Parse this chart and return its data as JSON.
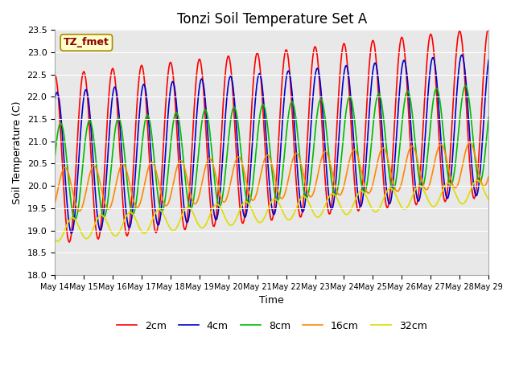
{
  "title": "Tonzi Soil Temperature Set A",
  "xlabel": "Time",
  "ylabel": "Soil Temperature (C)",
  "ylim": [
    18.0,
    23.5
  ],
  "annotation": "TZ_fmet",
  "line_colors": {
    "2cm": "#ff0000",
    "4cm": "#0000cc",
    "8cm": "#00bb00",
    "16cm": "#ff8800",
    "32cm": "#dddd00"
  },
  "legend_labels": [
    "2cm",
    "4cm",
    "8cm",
    "16cm",
    "32cm"
  ],
  "x_tick_labels": [
    "May 14",
    "May 15",
    "May 16",
    "May 17",
    "May 18",
    "May 19",
    "May 20",
    "May 21",
    "May 22",
    "May 23",
    "May 24",
    "May 25",
    "May 26",
    "May 27",
    "May 28",
    "May 29"
  ],
  "n_points": 480,
  "title_fontsize": 12,
  "fig_bg": "#ffffff",
  "plot_bg": "#e8e8e8",
  "grid_color": "#ffffff"
}
